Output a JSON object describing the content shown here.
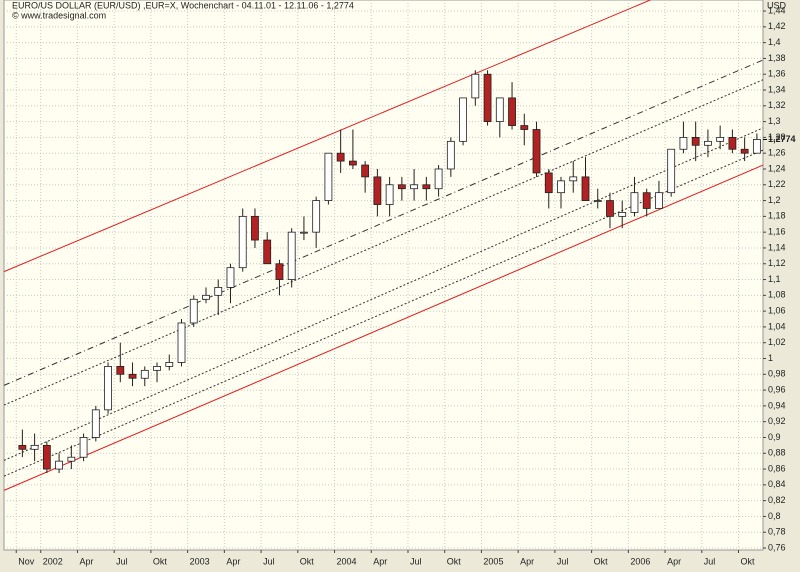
{
  "chart_data": {
    "type": "candlestick",
    "title": "EURO/US DOLLAR (EUR/USD) ,EUR=X, Wochenchart - 04.11.01 - 12.11.06 - 1,2774",
    "subtitle": "© www.tradesignal.com",
    "y_axis_label": "USD",
    "last_label": "1,2774",
    "x": [
      "2001-11",
      "2001-12",
      "2002-01",
      "2002-02",
      "2002-03",
      "2002-04",
      "2002-05",
      "2002-06",
      "2002-07",
      "2002-08",
      "2002-09",
      "2002-10",
      "2002-11",
      "2002-12",
      "2003-01",
      "2003-02",
      "2003-03",
      "2003-04",
      "2003-05",
      "2003-06",
      "2003-07",
      "2003-08",
      "2003-09",
      "2003-10",
      "2003-11",
      "2003-12",
      "2004-01",
      "2004-02",
      "2004-03",
      "2004-04",
      "2004-05",
      "2004-06",
      "2004-07",
      "2004-08",
      "2004-09",
      "2004-10",
      "2004-11",
      "2004-12",
      "2005-01",
      "2005-02",
      "2005-03",
      "2005-04",
      "2005-05",
      "2005-06",
      "2005-07",
      "2005-08",
      "2005-09",
      "2005-10",
      "2005-11",
      "2005-12",
      "2006-01",
      "2006-02",
      "2006-03",
      "2006-04",
      "2006-05",
      "2006-06",
      "2006-07",
      "2006-08",
      "2006-09",
      "2006-10",
      "2006-11"
    ],
    "open": [
      0.89,
      0.885,
      0.89,
      0.86,
      0.87,
      0.875,
      0.9,
      0.935,
      0.99,
      0.98,
      0.975,
      0.985,
      0.99,
      0.995,
      1.045,
      1.075,
      1.08,
      1.09,
      1.115,
      1.18,
      1.15,
      1.12,
      1.1,
      1.16,
      1.16,
      1.2,
      1.26,
      1.25,
      1.245,
      1.23,
      1.195,
      1.22,
      1.215,
      1.22,
      1.215,
      1.24,
      1.275,
      1.33,
      1.36,
      1.3,
      1.33,
      1.295,
      1.29,
      1.235,
      1.21,
      1.225,
      1.23,
      1.2,
      1.2,
      1.18,
      1.185,
      1.21,
      1.19,
      1.21,
      1.265,
      1.28,
      1.27,
      1.275,
      1.28,
      1.265,
      1.26
    ],
    "high": [
      0.91,
      0.905,
      0.895,
      0.88,
      0.89,
      0.905,
      0.94,
      0.995,
      1.02,
      0.995,
      0.99,
      0.995,
      1.005,
      1.05,
      1.08,
      1.09,
      1.1,
      1.12,
      1.19,
      1.19,
      1.16,
      1.125,
      1.165,
      1.18,
      1.205,
      1.26,
      1.29,
      1.29,
      1.25,
      1.24,
      1.23,
      1.23,
      1.24,
      1.23,
      1.245,
      1.28,
      1.33,
      1.365,
      1.365,
      1.33,
      1.35,
      1.31,
      1.3,
      1.24,
      1.23,
      1.25,
      1.255,
      1.215,
      1.21,
      1.2,
      1.23,
      1.215,
      1.225,
      1.265,
      1.3,
      1.3,
      1.29,
      1.295,
      1.29,
      1.28,
      1.285
    ],
    "low": [
      0.875,
      0.87,
      0.855,
      0.855,
      0.86,
      0.87,
      0.895,
      0.93,
      0.97,
      0.965,
      0.965,
      0.97,
      0.985,
      0.99,
      1.04,
      1.07,
      1.055,
      1.07,
      1.11,
      1.14,
      1.12,
      1.08,
      1.09,
      1.15,
      1.14,
      1.195,
      1.235,
      1.24,
      1.21,
      1.18,
      1.18,
      1.2,
      1.2,
      1.2,
      1.205,
      1.23,
      1.27,
      1.32,
      1.295,
      1.28,
      1.29,
      1.27,
      1.23,
      1.19,
      1.19,
      1.21,
      1.2,
      1.19,
      1.165,
      1.165,
      1.18,
      1.18,
      1.19,
      1.205,
      1.26,
      1.25,
      1.255,
      1.265,
      1.26,
      1.25,
      1.26
    ],
    "close": [
      0.885,
      0.89,
      0.86,
      0.87,
      0.875,
      0.9,
      0.935,
      0.99,
      0.98,
      0.975,
      0.985,
      0.99,
      0.995,
      1.045,
      1.075,
      1.08,
      1.09,
      1.115,
      1.18,
      1.15,
      1.12,
      1.1,
      1.16,
      1.16,
      1.2,
      1.26,
      1.25,
      1.245,
      1.23,
      1.195,
      1.22,
      1.215,
      1.22,
      1.215,
      1.24,
      1.275,
      1.33,
      1.36,
      1.3,
      1.33,
      1.295,
      1.29,
      1.235,
      1.21,
      1.225,
      1.23,
      1.2,
      1.2,
      1.18,
      1.185,
      1.21,
      1.19,
      1.21,
      1.265,
      1.28,
      1.27,
      1.275,
      1.28,
      1.265,
      1.26,
      1.2774
    ],
    "up_color": "#ffffff",
    "down_color": "#b22222",
    "outline_color": "#202020",
    "xlim": [
      "2001-10",
      "2006-12"
    ],
    "xticks": [
      {
        "value": "2001-11",
        "label": "Nov"
      },
      {
        "value": "2002-01",
        "label": "2002"
      },
      {
        "value": "2002-04",
        "label": "Apr"
      },
      {
        "value": "2002-07",
        "label": "Jul"
      },
      {
        "value": "2002-10",
        "label": "Okt"
      },
      {
        "value": "2003-01",
        "label": "2003"
      },
      {
        "value": "2003-04",
        "label": "Apr"
      },
      {
        "value": "2003-07",
        "label": "Jul"
      },
      {
        "value": "2003-10",
        "label": "Okt"
      },
      {
        "value": "2004-01",
        "label": "2004"
      },
      {
        "value": "2004-04",
        "label": "Apr"
      },
      {
        "value": "2004-07",
        "label": "Jul"
      },
      {
        "value": "2004-10",
        "label": "Okt"
      },
      {
        "value": "2005-01",
        "label": "2005"
      },
      {
        "value": "2005-04",
        "label": "Apr"
      },
      {
        "value": "2005-07",
        "label": "Jul"
      },
      {
        "value": "2005-10",
        "label": "Okt"
      },
      {
        "value": "2006-01",
        "label": "2006"
      },
      {
        "value": "2006-04",
        "label": "Apr"
      },
      {
        "value": "2006-07",
        "label": "Jul"
      },
      {
        "value": "2006-10",
        "label": "Okt"
      }
    ],
    "ylim": [
      0.7575,
      1.454
    ],
    "yticks": [
      {
        "value": 0.76,
        "label": "0,76"
      },
      {
        "value": 0.78,
        "label": "0,78"
      },
      {
        "value": 0.8,
        "label": "0,8"
      },
      {
        "value": 0.82,
        "label": "0,82"
      },
      {
        "value": 0.84,
        "label": "0,84"
      },
      {
        "value": 0.86,
        "label": "0,86"
      },
      {
        "value": 0.88,
        "label": "0,88"
      },
      {
        "value": 0.9,
        "label": "0,9"
      },
      {
        "value": 0.92,
        "label": "0,92"
      },
      {
        "value": 0.94,
        "label": "0,94"
      },
      {
        "value": 0.96,
        "label": "0,96"
      },
      {
        "value": 0.98,
        "label": "0,98"
      },
      1,
      {
        "value": 1.02,
        "label": "1,02"
      },
      {
        "value": 1.04,
        "label": "1,04"
      },
      {
        "value": 1.06,
        "label": "1,06"
      },
      {
        "value": 1.08,
        "label": "1,08"
      },
      {
        "value": 1.1,
        "label": "1,1"
      },
      {
        "value": 1.12,
        "label": "1,12"
      },
      {
        "value": 1.14,
        "label": "1,14"
      },
      {
        "value": 1.16,
        "label": "1,16"
      },
      {
        "value": 1.18,
        "label": "1,18"
      },
      {
        "value": 1.2,
        "label": "1,2"
      },
      {
        "value": 1.22,
        "label": "1,22"
      },
      {
        "value": 1.24,
        "label": "1,24"
      },
      {
        "value": 1.26,
        "label": "1,26"
      },
      {
        "value": 1.28,
        "label": "1,28"
      },
      {
        "value": 1.3,
        "label": "1,3"
      },
      {
        "value": 1.32,
        "label": "1,32"
      },
      {
        "value": 1.34,
        "label": "1,34"
      },
      {
        "value": 1.36,
        "label": "1,36"
      },
      {
        "value": 1.38,
        "label": "1,38"
      },
      {
        "value": 1.4,
        "label": "1,4"
      },
      {
        "value": 1.42,
        "label": "1,42"
      },
      {
        "value": 1.44,
        "label": "1,44"
      }
    ],
    "grid": true,
    "trend_lines": [
      {
        "start": [
          "2001-10",
          1.11
        ],
        "end": [
          "2006-12",
          1.514
        ],
        "color": "#e02020",
        "style": "solid"
      },
      {
        "start": [
          "2001-10",
          0.833
        ],
        "end": [
          "2006-12",
          1.245
        ],
        "color": "#e02020",
        "style": "solid"
      },
      {
        "start": [
          "2001-10",
          0.851
        ],
        "end": [
          "2006-12",
          1.264
        ],
        "color": "#333333",
        "style": "dotted"
      },
      {
        "start": [
          "2001-10",
          0.871
        ],
        "end": [
          "2006-12",
          1.292
        ],
        "color": "#333333",
        "style": "dotted"
      },
      {
        "start": [
          "2001-10",
          0.941
        ],
        "end": [
          "2006-12",
          1.353
        ],
        "color": "#333333",
        "style": "dotted"
      },
      {
        "start": [
          "2001-10",
          0.966
        ],
        "end": [
          "2006-12",
          1.378
        ],
        "color": "#333333",
        "style": "dash-dot"
      }
    ]
  }
}
